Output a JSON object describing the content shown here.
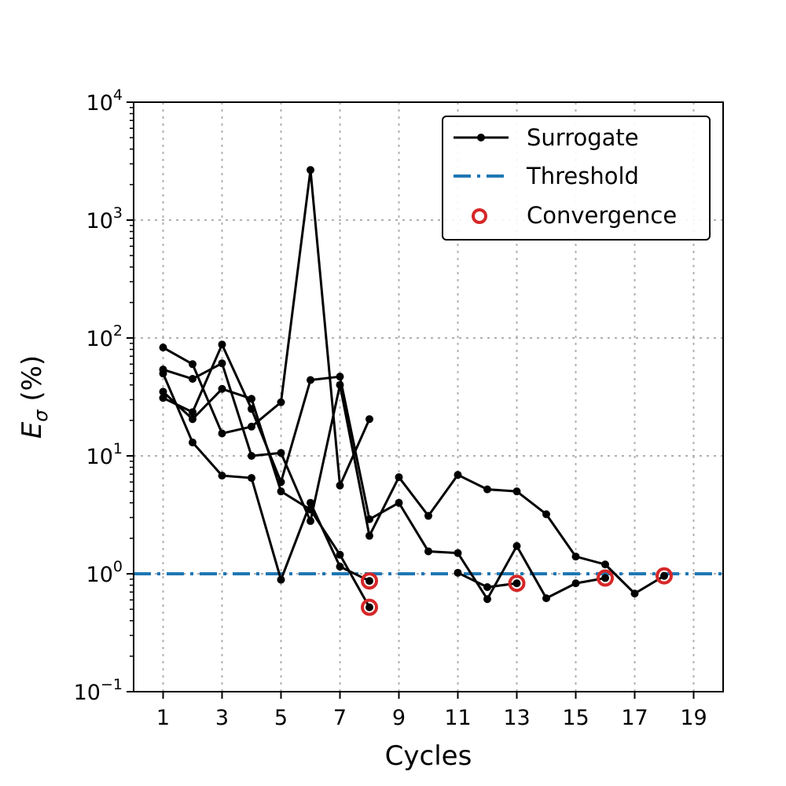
{
  "chart_data": {
    "type": "line",
    "xlabel": "Cycles",
    "ylabel_base": "E",
    "ylabel_sub": "σ",
    "ylabel_unit": " (%)",
    "xlim": [
      0,
      20
    ],
    "ylim": [
      0.1,
      10000
    ],
    "yscale": "log",
    "grid": true,
    "legend_position": "top-right",
    "xticks": [
      1,
      3,
      5,
      7,
      9,
      11,
      13,
      15,
      17,
      19
    ],
    "xtick_labels": [
      "1",
      "3",
      "5",
      "7",
      "9",
      "11",
      "13",
      "15",
      "17",
      "19"
    ],
    "yticks": [
      {
        "value": 0.1,
        "base": "10",
        "exp": "−1"
      },
      {
        "value": 1,
        "base": "10",
        "exp": "0"
      },
      {
        "value": 10,
        "base": "10",
        "exp": "1"
      },
      {
        "value": 100,
        "base": "10",
        "exp": "2"
      },
      {
        "value": 1000,
        "base": "10",
        "exp": "3"
      },
      {
        "value": 10000,
        "base": "10",
        "exp": "4"
      }
    ],
    "threshold": 1.0,
    "series": [
      {
        "x": [
          1,
          2,
          3,
          4,
          5,
          6,
          7,
          8
        ],
        "y": [
          83,
          60,
          15.5,
          17.7,
          28.5,
          2660,
          5.6,
          20.5
        ]
      },
      {
        "x": [
          1,
          2,
          3,
          4,
          5,
          6,
          7,
          8
        ],
        "y": [
          50,
          13,
          6.8,
          6.5,
          0.89,
          4.0,
          1.15,
          0.87
        ]
      },
      {
        "x": [
          1,
          2,
          3,
          4,
          5,
          6,
          7,
          8,
          9,
          10,
          11,
          12,
          13,
          14,
          15,
          16,
          17,
          18
        ],
        "y": [
          54,
          45,
          61,
          10,
          10.6,
          2.8,
          40,
          2.1,
          6.6,
          3.1,
          6.9,
          5.2,
          5.0,
          3.2,
          1.4,
          1.2,
          0.68,
          0.96
        ]
      },
      {
        "x": [
          1,
          2,
          3,
          4,
          5,
          6,
          7,
          8
        ],
        "y": [
          35,
          20.5,
          37,
          30.5,
          5.0,
          3.5,
          1.45,
          0.52
        ]
      },
      {
        "x": [
          1,
          2,
          3,
          4,
          5,
          6,
          7,
          8,
          9,
          10,
          11,
          12,
          13,
          14,
          15,
          16
        ],
        "y": [
          31,
          23.5,
          88,
          25,
          6.0,
          44,
          47,
          2.9,
          4.0,
          1.55,
          1.5,
          0.61,
          1.72,
          0.62,
          0.83,
          0.92
        ]
      },
      {
        "x": [
          11,
          12,
          13
        ],
        "y": [
          1.02,
          0.77,
          0.83
        ]
      }
    ],
    "convergence": [
      {
        "x": 8,
        "y": 0.87
      },
      {
        "x": 8,
        "y": 0.52
      },
      {
        "x": 13,
        "y": 0.83
      },
      {
        "x": 16,
        "y": 0.92
      },
      {
        "x": 18,
        "y": 0.96
      }
    ],
    "legend": {
      "entries": [
        "Surrogate",
        "Threshold",
        "Convergence"
      ]
    },
    "colors": {
      "surrogate": "#000000",
      "threshold": "#1f77b4",
      "convergence": "#d62728"
    }
  }
}
